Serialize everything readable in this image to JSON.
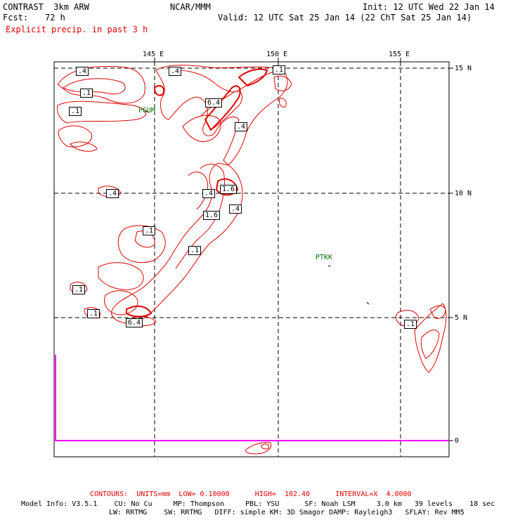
{
  "header": {
    "title_left": "CONTRAST  3km ARW",
    "title_center": "NCAR/MMM",
    "init": "Init: 12 UTC Wed 22 Jan 14",
    "fcst_label": "Fcst:",
    "fcst_value": "72 h",
    "valid": "Valid: 12 UTC Sat 25 Jan 14 (22 ChT Sat 25 Jan 14)",
    "field": "Explicit precip. in past 3 h"
  },
  "axes": {
    "lon_labels": [
      "145 E",
      "150 E",
      "155 E"
    ],
    "lat_labels": [
      "15 N",
      "10 N",
      "5 N",
      "0"
    ]
  },
  "stations": [
    "PGUM",
    "PTKK"
  ],
  "contour_labels": [
    ".4",
    ".4",
    ".1",
    ".1",
    ".1",
    "6.4",
    ".4",
    ".4",
    ".4",
    "1.6",
    ".4",
    "1.6",
    ".1",
    ".1",
    ".1",
    ".1",
    "6.4",
    ".1"
  ],
  "footer": {
    "contours": "CONTOURS:  UNITS=mm  LOW= 0.10000      HIGH=  102.40      INTERVAL=X  4.0000",
    "model_line1": "Model Info: V3.5.1    CU: No Cu     MP: Thompson     PBL: YSU      SF: Noah LSM     3.0 km   39 levels    18 sec",
    "model_line2": "LW: RRTMG    SW: RRTMG   DIFF: simple KM: 3D Smagor DAMP: Rayleigh3   SFLAY: Rev MM5"
  },
  "colors": {
    "contour": "#e00000",
    "boundary": "#ff00ff",
    "station": "#007000"
  }
}
